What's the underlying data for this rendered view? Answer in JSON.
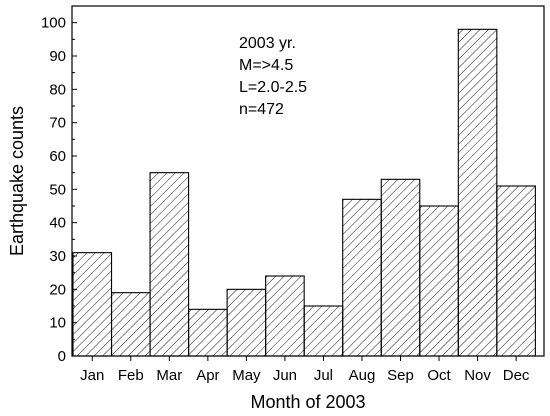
{
  "chart_data": {
    "type": "bar",
    "categories": [
      "Jan",
      "Feb",
      "Mar",
      "Apr",
      "May",
      "Jun",
      "Jul",
      "Aug",
      "Sep",
      "Oct",
      "Nov",
      "Dec"
    ],
    "values": [
      31,
      19,
      55,
      14,
      20,
      24,
      15,
      47,
      53,
      45,
      98,
      51
    ],
    "xlabel": "Month of 2003",
    "ylabel": "Earthquake counts",
    "ylim": [
      0,
      105
    ],
    "yticks": [
      0,
      10,
      20,
      30,
      40,
      50,
      60,
      70,
      80,
      90,
      100
    ],
    "grid": false,
    "bar_fill": "hatched",
    "annotations": [
      "2003 yr.",
      "M=>4.5",
      "L=2.0-2.5",
      "n=472"
    ]
  }
}
